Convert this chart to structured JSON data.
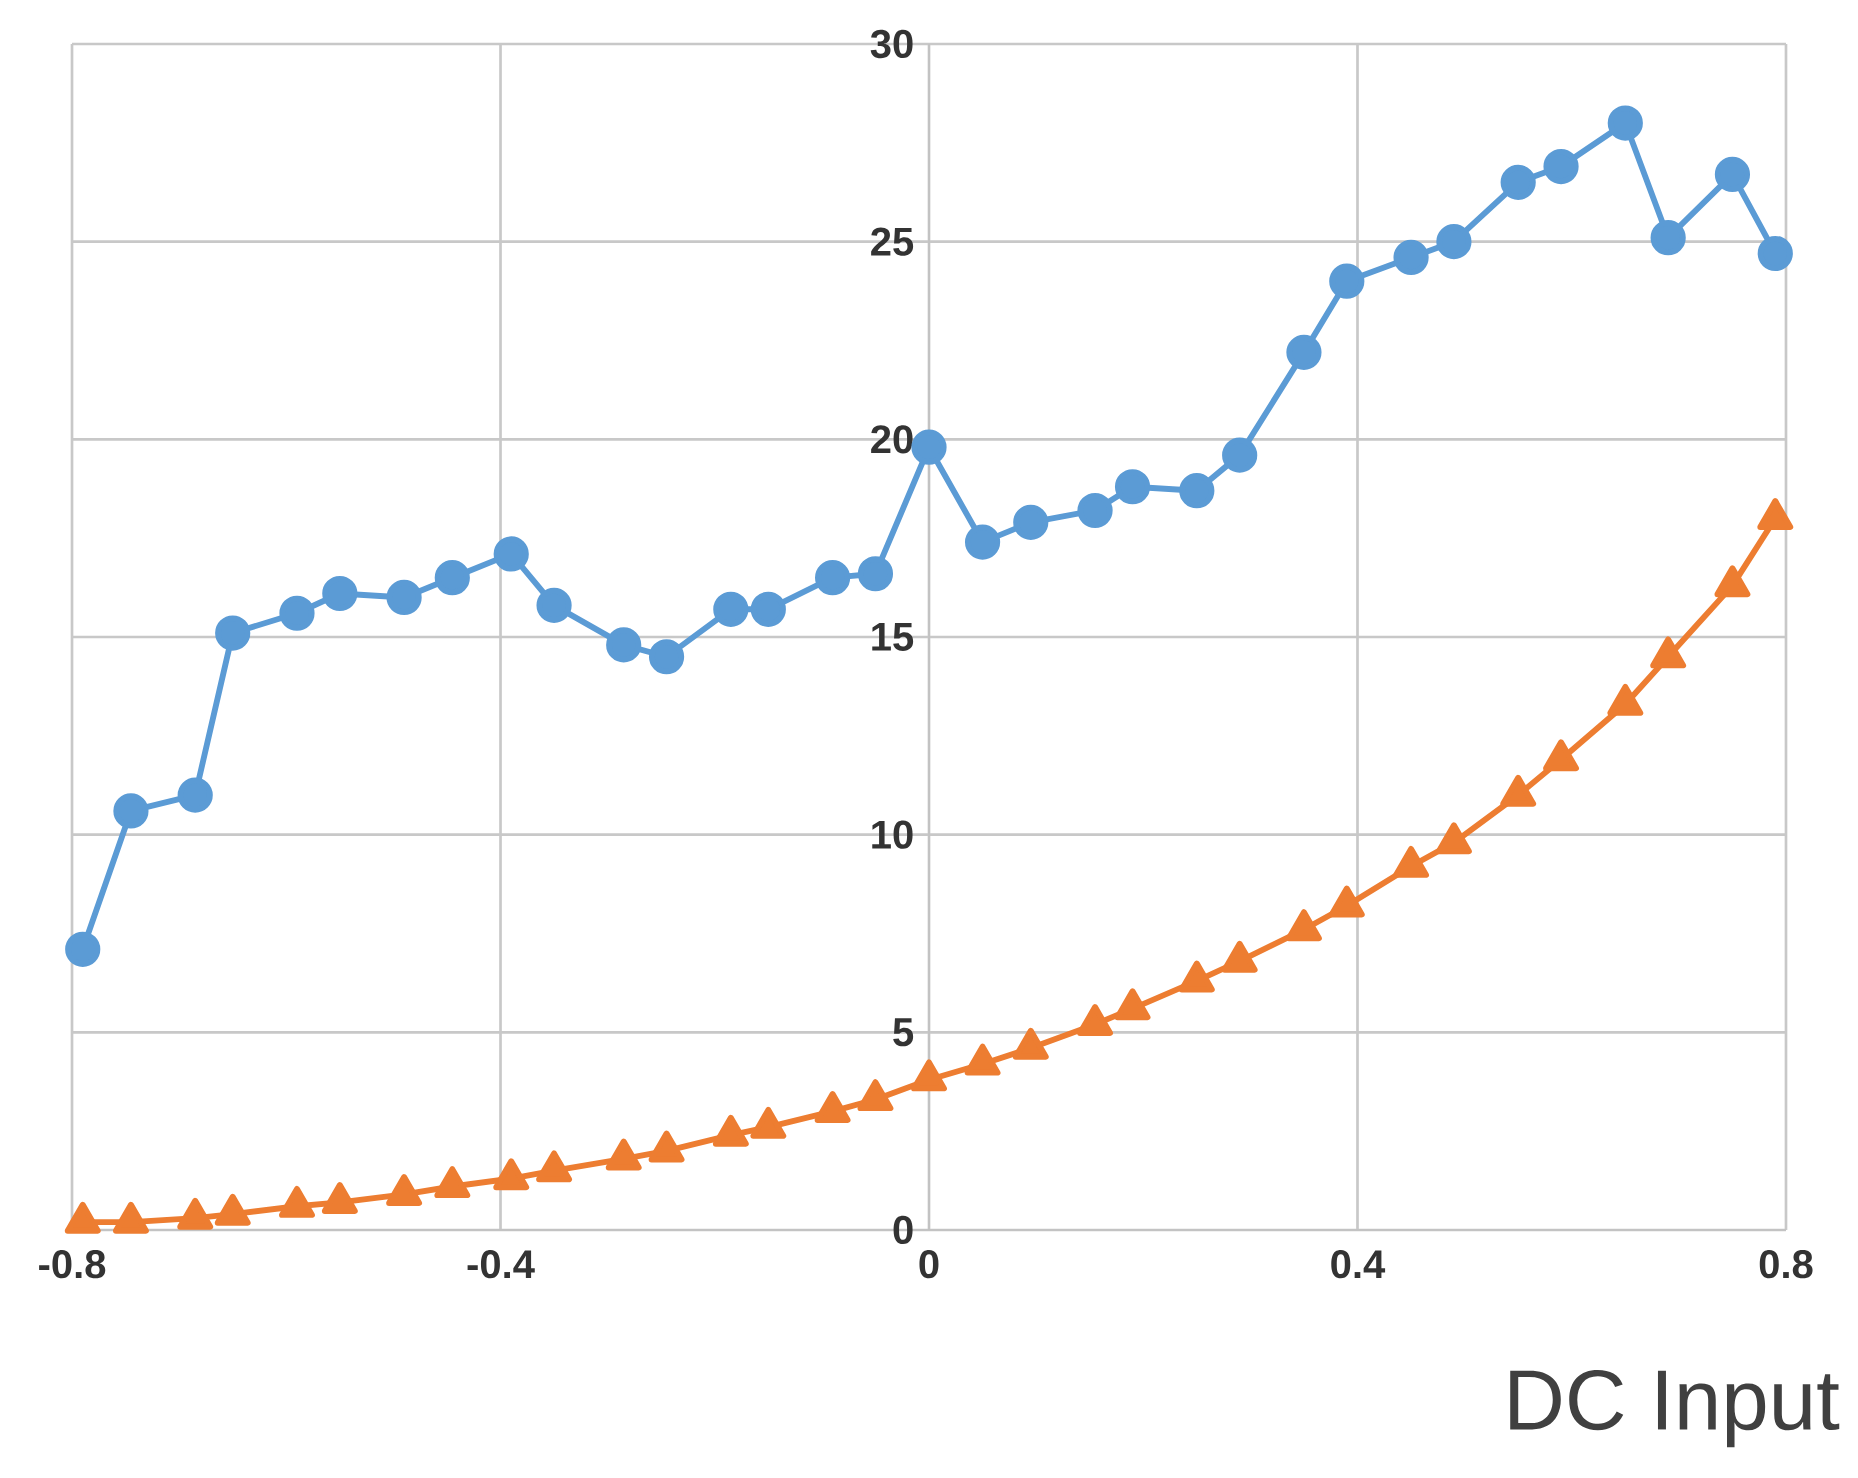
{
  "chart_data": {
    "type": "line",
    "xlabel": "DC Input",
    "xlim": [
      -0.8,
      0.8
    ],
    "xticks": [
      -0.8,
      -0.4,
      0,
      0.4,
      0.8
    ],
    "ylim": [
      0,
      30
    ],
    "yticks": [
      0,
      5,
      10,
      15,
      20,
      25,
      30
    ],
    "grid": true,
    "series": [
      {
        "color": "#5b9bd5",
        "marker": "circle",
        "line_style": "solid",
        "x": [
          -0.79,
          -0.745,
          -0.685,
          -0.65,
          -0.59,
          -0.55,
          -0.49,
          -0.445,
          -0.39,
          -0.35,
          -0.285,
          -0.245,
          -0.185,
          -0.15,
          -0.09,
          -0.05,
          0,
          0.05,
          0.095,
          0.155,
          0.19,
          0.25,
          0.29,
          0.35,
          0.39,
          0.45,
          0.49,
          0.55,
          0.59,
          0.65,
          0.69,
          0.75,
          0.79
        ],
        "values": [
          7.1,
          10.6,
          11.0,
          15.1,
          15.6,
          16.1,
          16.0,
          16.5,
          17.1,
          15.8,
          14.8,
          14.5,
          15.7,
          15.7,
          16.5,
          16.6,
          19.8,
          17.4,
          17.9,
          18.2,
          18.8,
          18.7,
          19.6,
          22.2,
          24.0,
          24.6,
          25.0,
          26.5,
          26.9,
          28.0,
          25.1,
          26.7,
          24.7
        ]
      },
      {
        "color": "#ed7d31",
        "marker": "triangle",
        "line_style": "solid",
        "x": [
          -0.79,
          -0.745,
          -0.685,
          -0.65,
          -0.59,
          -0.55,
          -0.49,
          -0.445,
          -0.39,
          -0.35,
          -0.285,
          -0.245,
          -0.185,
          -0.15,
          -0.09,
          -0.05,
          0,
          0.05,
          0.095,
          0.155,
          0.19,
          0.25,
          0.29,
          0.35,
          0.39,
          0.45,
          0.49,
          0.55,
          0.59,
          0.65,
          0.69,
          0.75,
          0.79
        ],
        "values": [
          0.2,
          0.2,
          0.3,
          0.4,
          0.6,
          0.7,
          0.9,
          1.1,
          1.3,
          1.5,
          1.8,
          2.0,
          2.4,
          2.6,
          3.0,
          3.3,
          3.8,
          4.2,
          4.6,
          5.2,
          5.6,
          6.3,
          6.8,
          7.6,
          8.2,
          9.2,
          9.8,
          11.0,
          11.9,
          13.3,
          14.5,
          16.3,
          18.0
        ]
      }
    ]
  }
}
